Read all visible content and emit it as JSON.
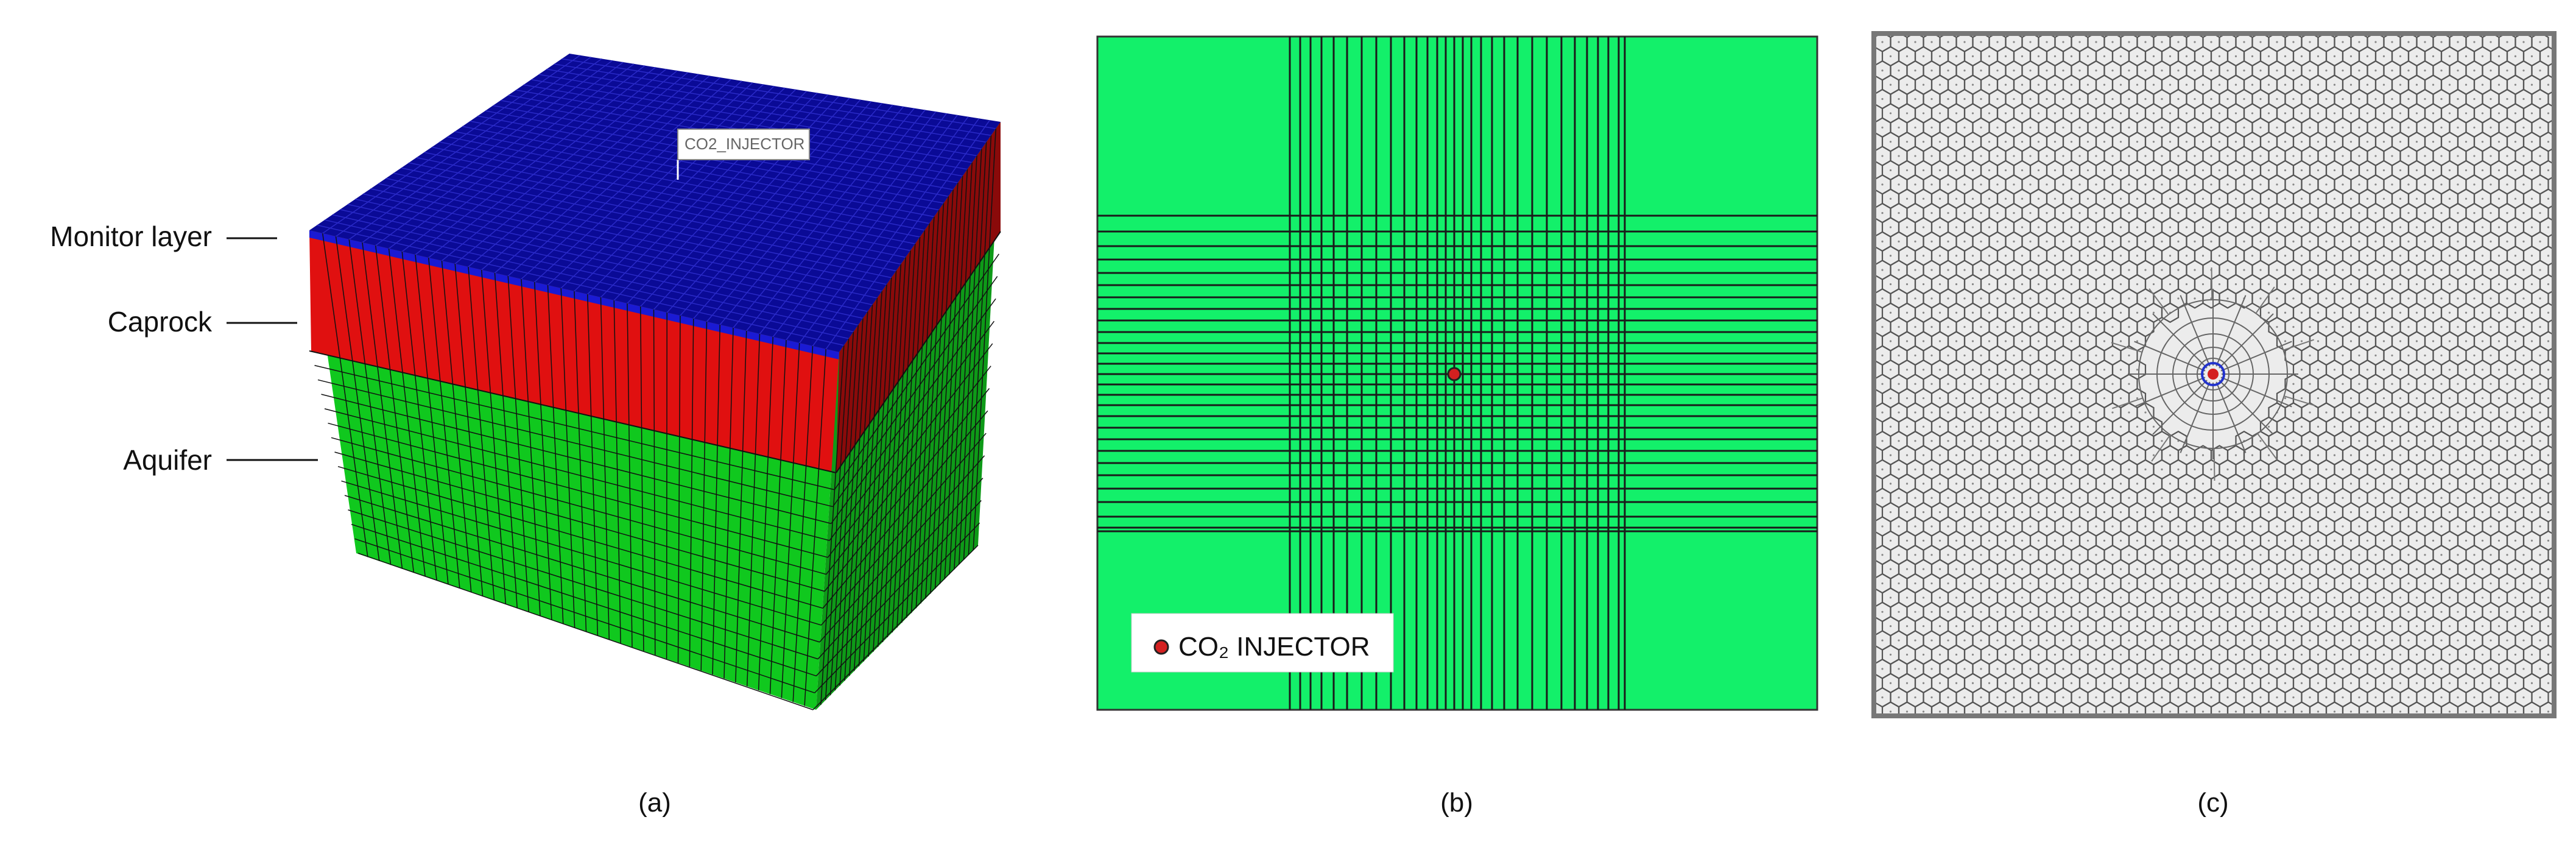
{
  "panels": {
    "a": {
      "caption": "(a)",
      "well_tag": "CO2_INJECTOR",
      "layers": [
        {
          "label": "Monitor layer",
          "color": "#1a1ad4"
        },
        {
          "label": "Caprock",
          "color": "#e01010"
        },
        {
          "label": "Aquifer",
          "color": "#10c81e"
        }
      ],
      "top_color": "#0a0a96"
    },
    "b": {
      "caption": "(b)",
      "legend_label": "CO₂ INJECTOR",
      "fill_color": "#13f06a",
      "marker_color": "#d42020"
    },
    "c": {
      "caption": "(c)",
      "cell_fill": "#ececec",
      "edge_color": "#555555",
      "well_color": "#d42020"
    }
  }
}
